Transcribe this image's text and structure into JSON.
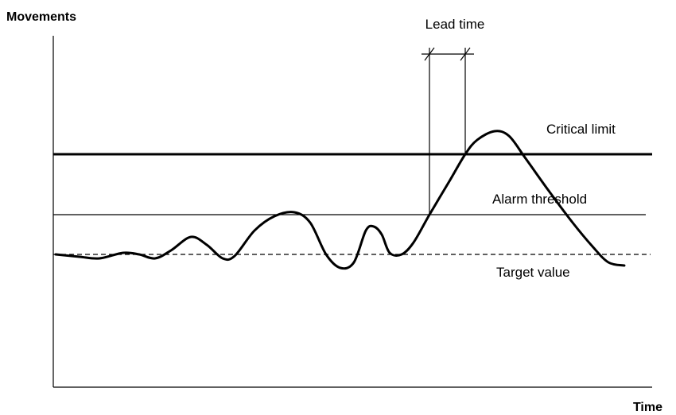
{
  "axes": {
    "y_label": "Movements",
    "x_label": "Time"
  },
  "annotations": {
    "lead_time": "Lead time",
    "critical_limit": "Critical limit",
    "alarm_threshold": "Alarm threshold",
    "target_value": "Target value"
  }
}
